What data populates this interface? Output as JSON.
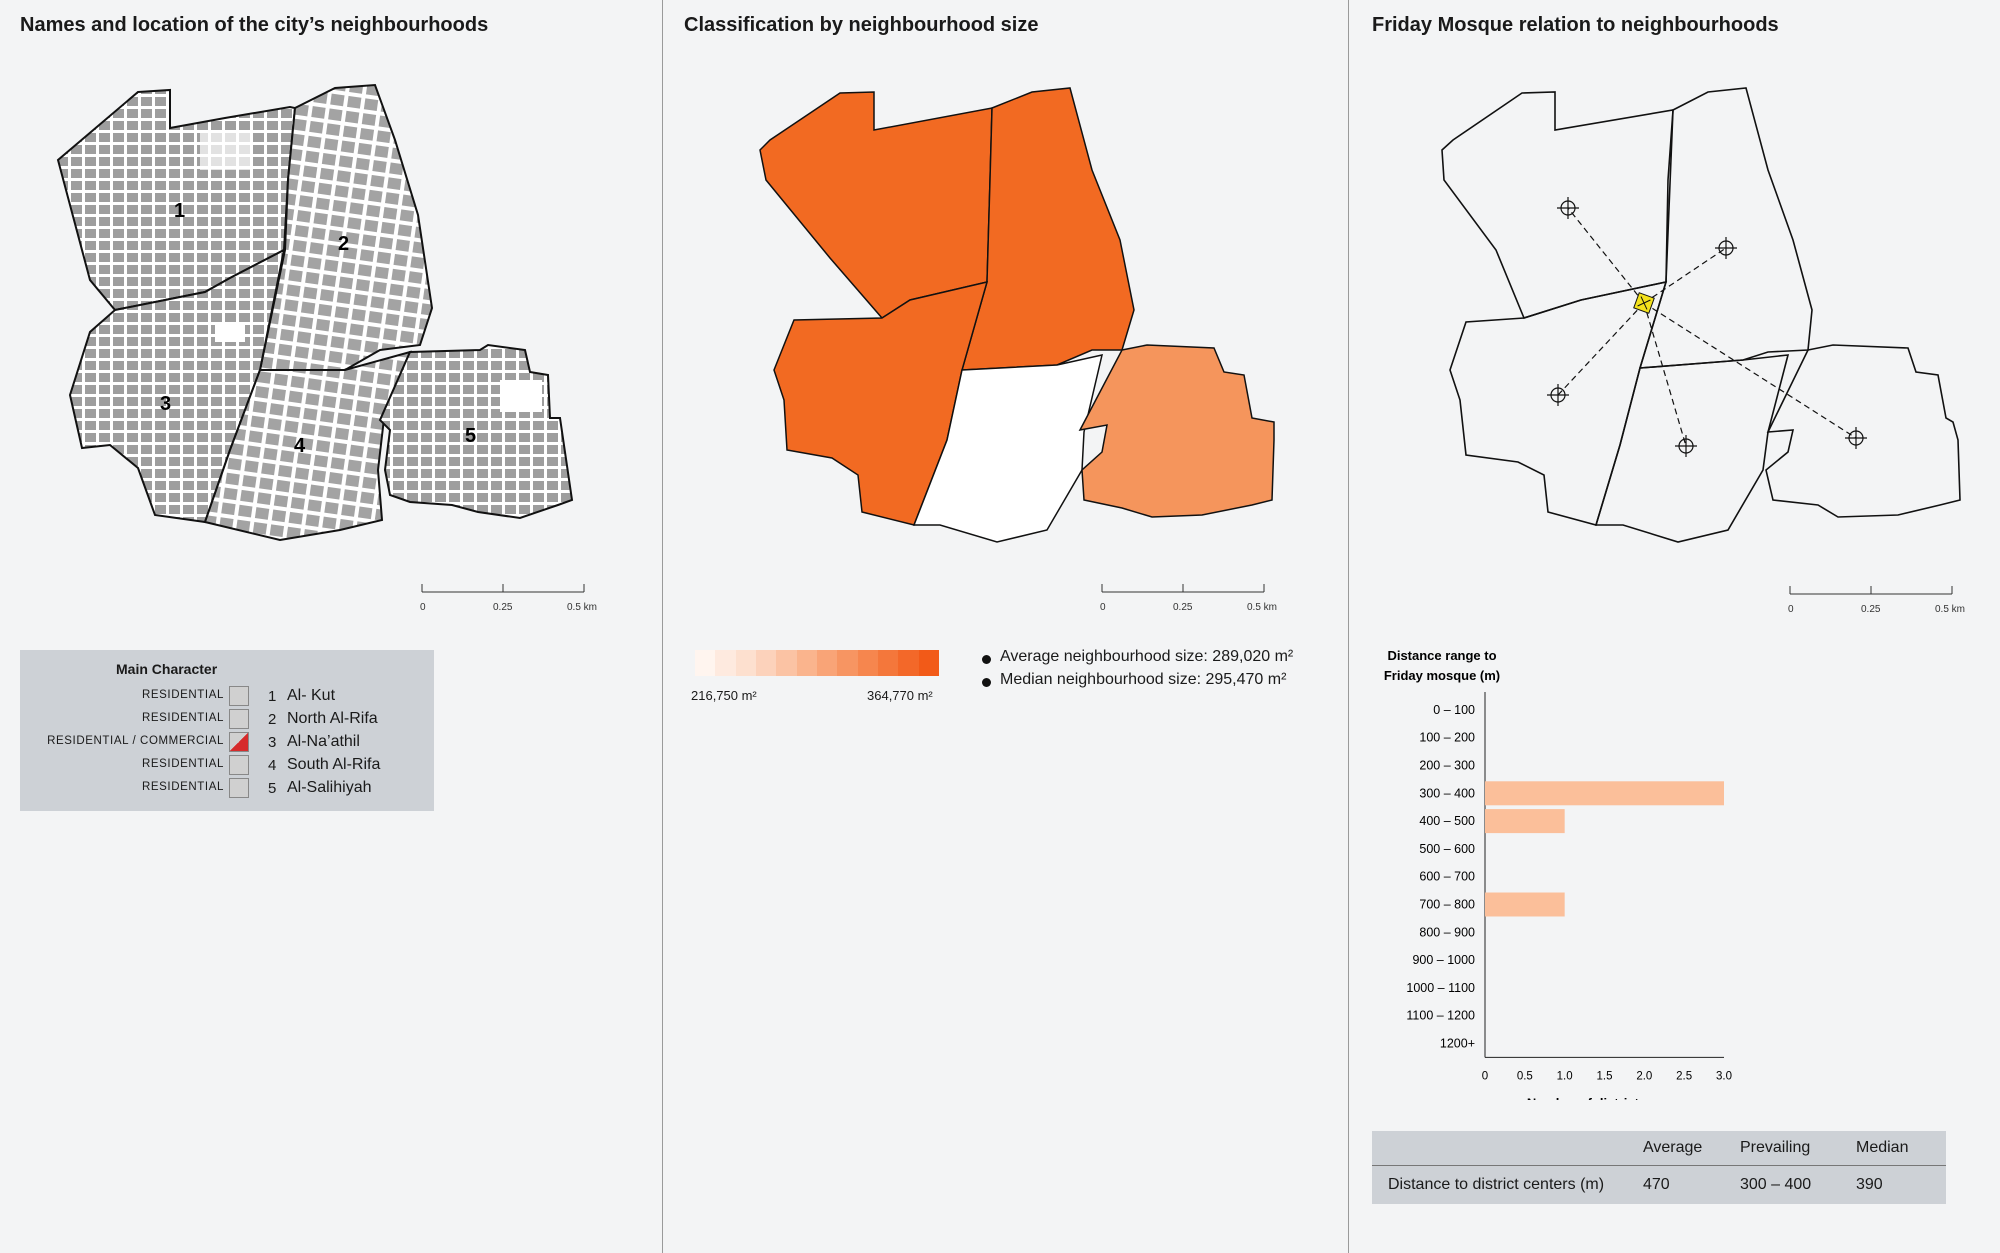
{
  "panels": {
    "names": {
      "title": "Names and location of the city’s neighbourhoods"
    },
    "size": {
      "title": "Classification by neighbourhood size"
    },
    "mosque": {
      "title": "Friday Mosque relation to neighbourhoods"
    }
  },
  "scale": {
    "t0": "0",
    "t1": "0.25",
    "t2": "0.5 km"
  },
  "map_labels": [
    "1",
    "2",
    "3",
    "4",
    "5"
  ],
  "legend": {
    "title": "Main Character",
    "rows": [
      {
        "character": "RESIDENTIAL",
        "num": "1",
        "name": "Al- Kut",
        "color": "#d0d0d0"
      },
      {
        "character": "RESIDENTIAL",
        "num": "2",
        "name": "North Al-Rifa",
        "color": "#d0d0d0"
      },
      {
        "character": "RESIDENTIAL / COMMERCIAL",
        "num": "3",
        "name": "Al-Na’athil",
        "color": "#d62b2b"
      },
      {
        "character": "RESIDENTIAL",
        "num": "4",
        "name": "South Al-Rifa",
        "color": "#d0d0d0"
      },
      {
        "character": "RESIDENTIAL",
        "num": "5",
        "name": "Al-Salihiyah",
        "color": "#d0d0d0"
      }
    ]
  },
  "size_legend": {
    "min": "216,750 m²",
    "max": "364,770 m²",
    "avg": "Average neighbourhood size: 289,020 m²",
    "median": "Median neighbourhood size: 295,470 m²",
    "colors": {
      "large": "#f26a22",
      "medium": "#f5955c",
      "empty": "#ffffff"
    }
  },
  "chart_data": {
    "type": "bar",
    "orientation": "horizontal",
    "title": "Distance range to Friday mosque (m)",
    "xlabel": "Number of districts",
    "categories": [
      "0 – 100",
      "100 – 200",
      "200 – 300",
      "300 – 400",
      "400 – 500",
      "500 – 600",
      "600 – 700",
      "700 – 800",
      "800 – 900",
      "900 – 1000",
      "1000 – 1100",
      "1100 – 1200",
      "1200+"
    ],
    "values": [
      0,
      0,
      0,
      3,
      1,
      0,
      0,
      1,
      0,
      0,
      0,
      0,
      0
    ],
    "xlim": [
      0,
      3
    ],
    "xticks": [
      "0",
      "0.5",
      "1.0",
      "1.5",
      "2.0",
      "2.5",
      "3.0"
    ],
    "bar_color": "#fbbf9a"
  },
  "distance_table": {
    "headers": [
      "",
      "Average",
      "Prevailing",
      "Median"
    ],
    "row": [
      "Distance to district centers (m)",
      "470",
      "300 – 400",
      "390"
    ]
  }
}
